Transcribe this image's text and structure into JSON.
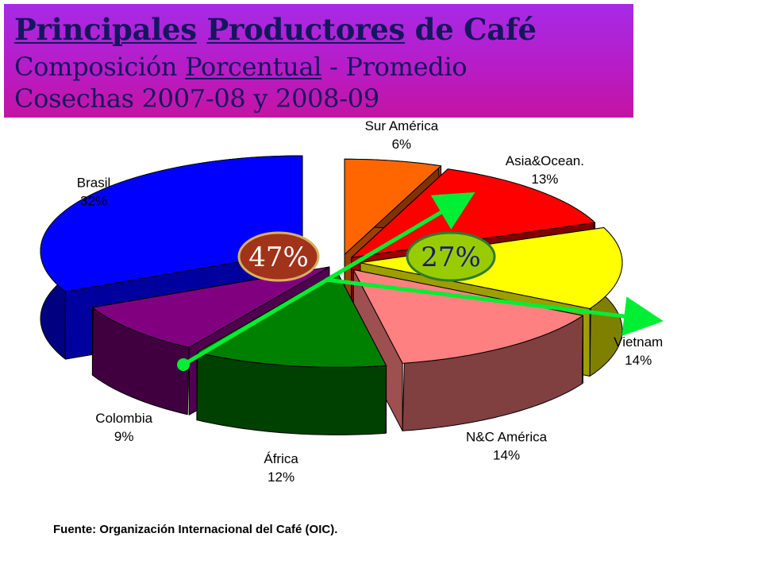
{
  "title": {
    "line1_part1": "Principales",
    "line1_part2": "Productores",
    "line1_part3": "de Café",
    "line2_part1": "Composición",
    "line2_part2": "Porcentual",
    "line2_part3": "- Promedio",
    "line3": "Cosechas 2007-08 y 2008-09"
  },
  "source": "Fuente: Organización Internacional del Café (OIC).",
  "chart_data": {
    "type": "pie",
    "title": "Principales Productores de Café - Composición Porcentual - Promedio Cosechas 2007-08 y 2008-09",
    "unit": "%",
    "slices": [
      {
        "name": "Sur América",
        "value": 6,
        "label": "6%",
        "color": "#ff6600"
      },
      {
        "name": "Asia&Ocean.",
        "value": 13,
        "label": "13%",
        "color": "#ff0000"
      },
      {
        "name": "Vietnam",
        "value": 14,
        "label": "14%",
        "color": "#ffff00"
      },
      {
        "name": "N&C América",
        "value": 14,
        "label": "14%",
        "color": "#ff8080"
      },
      {
        "name": "África",
        "value": 12,
        "label": "12%",
        "color": "#008000"
      },
      {
        "name": "Colombia",
        "value": 9,
        "label": "9%",
        "color": "#800080"
      },
      {
        "name": "Brasil",
        "value": 32,
        "label": "32%",
        "color": "#0000ff"
      }
    ],
    "annotations": [
      {
        "text": "47%",
        "fill": "#a0331a",
        "text_color": "#ffffff",
        "border": "#d8b060"
      },
      {
        "text": "27%",
        "fill": "#99cc00",
        "text_color": "#1a1a6e",
        "border": "#2e7a2e"
      }
    ],
    "arrow_color": "#00ee33",
    "exploded": true,
    "three_d": true
  }
}
